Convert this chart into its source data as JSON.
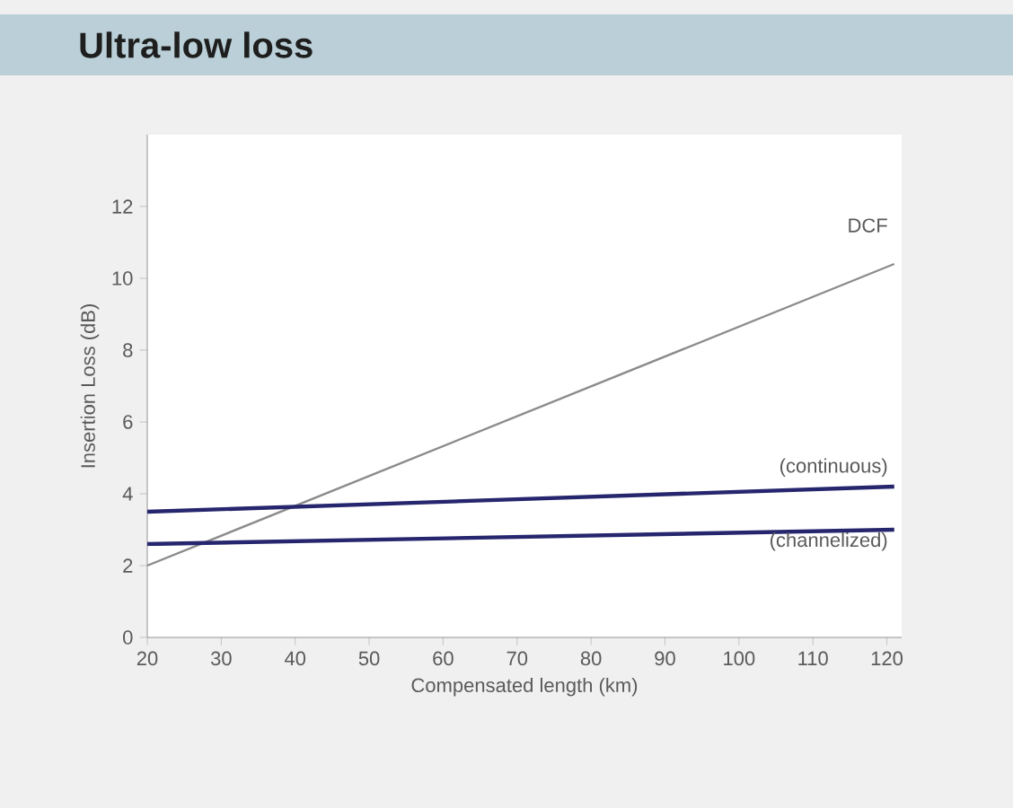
{
  "chart_data": {
    "type": "line",
    "title": "Ultra-low loss",
    "xlabel": "Compensated length (km)",
    "ylabel": "Insertion Loss (dB)",
    "xlim": [
      20,
      122
    ],
    "ylim": [
      0,
      14
    ],
    "xticks": [
      20,
      30,
      40,
      50,
      60,
      70,
      80,
      90,
      100,
      110,
      120
    ],
    "yticks": [
      0,
      2,
      4,
      6,
      8,
      10,
      12
    ],
    "x": [
      20,
      121
    ],
    "series": [
      {
        "name": "DCF",
        "color": "#8c8c8c",
        "values": [
          2.0,
          10.4
        ]
      },
      {
        "name": "(continuous)",
        "color": "#26266e",
        "values": [
          3.5,
          4.2
        ]
      },
      {
        "name": "(channelized)",
        "color": "#26266e",
        "values": [
          2.6,
          3.0
        ]
      }
    ]
  }
}
